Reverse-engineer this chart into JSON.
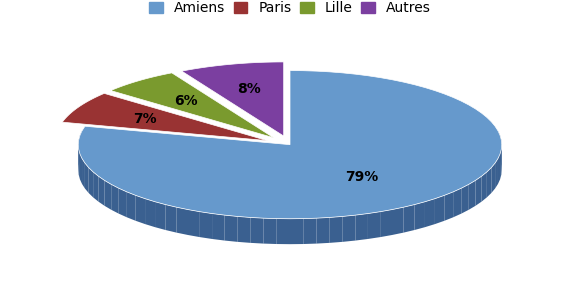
{
  "labels": [
    "Amiens",
    "Paris",
    "Lille",
    "Autres"
  ],
  "values": [
    79,
    7,
    6,
    8
  ],
  "colors": [
    "#6699CC",
    "#993333",
    "#7A9A2E",
    "#7B3FA0"
  ],
  "dark_colors": [
    "#3A6090",
    "#5C1A1A",
    "#4A5E1A",
    "#4A1A6A"
  ],
  "explode": [
    0.0,
    0.12,
    0.12,
    0.12
  ],
  "pct_labels": [
    "79%",
    "7%",
    "6%",
    "8%"
  ],
  "background_color": "#ffffff",
  "startangle": 90,
  "depth": 0.12,
  "ellipse_ratio": 0.35
}
